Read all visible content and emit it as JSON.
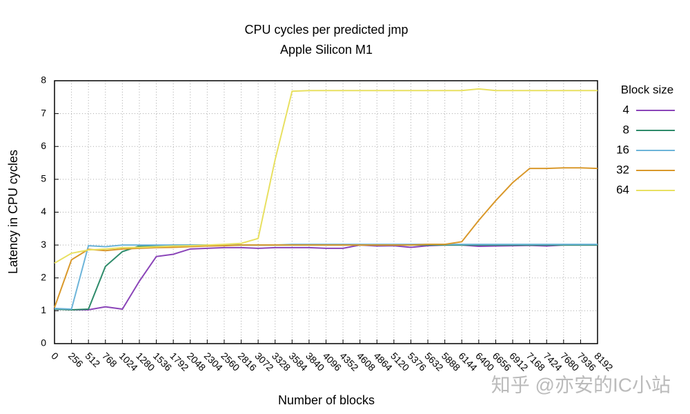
{
  "chart_data": {
    "type": "line",
    "title": "CPU cycles per predicted jmp",
    "subtitle": "Apple Silicon M1",
    "x_label": "Number of blocks",
    "y_label": "Latency in CPU cycles",
    "legend_title": "Block size",
    "legend_position": "right",
    "grid": true,
    "watermark": "知乎 @亦安的IC小站",
    "xlim": [
      0,
      8192
    ],
    "ylim": [
      0,
      8
    ],
    "xticks": [
      0,
      256,
      512,
      768,
      1024,
      1280,
      1536,
      1792,
      2048,
      2304,
      2560,
      2816,
      3072,
      3328,
      3584,
      3840,
      4096,
      4352,
      4608,
      4864,
      5120,
      5376,
      5632,
      5888,
      6144,
      6400,
      6656,
      6912,
      7168,
      7424,
      7680,
      7936,
      8192
    ],
    "yticks": [
      0,
      1,
      2,
      3,
      4,
      5,
      6,
      7,
      8
    ],
    "x": [
      0,
      256,
      512,
      768,
      1024,
      1280,
      1536,
      1792,
      2048,
      2304,
      2560,
      2816,
      3072,
      3328,
      3584,
      3840,
      4096,
      4352,
      4608,
      4864,
      5120,
      5376,
      5632,
      5888,
      6144,
      6400,
      6656,
      6912,
      7168,
      7424,
      7680,
      7936,
      8192
    ],
    "series": [
      {
        "name": "4",
        "color": "#8a44b8",
        "values": [
          1.05,
          1.03,
          1.03,
          1.12,
          1.05,
          1.9,
          2.65,
          2.72,
          2.88,
          2.9,
          2.92,
          2.92,
          2.9,
          2.92,
          2.92,
          2.92,
          2.9,
          2.9,
          3.0,
          2.97,
          2.98,
          2.93,
          2.98,
          3.0,
          3.0,
          2.96,
          2.97,
          2.98,
          2.99,
          2.97,
          3.0,
          3.0,
          3.0
        ]
      },
      {
        "name": "8",
        "color": "#2e8b6a",
        "values": [
          1.05,
          1.03,
          1.05,
          2.35,
          2.8,
          2.97,
          2.98,
          3.0,
          3.0,
          3.0,
          3.0,
          3.0,
          3.0,
          3.0,
          3.0,
          3.0,
          3.0,
          3.0,
          3.0,
          3.0,
          3.0,
          3.0,
          3.0,
          3.0,
          3.0,
          3.0,
          3.0,
          3.0,
          3.0,
          3.0,
          3.0,
          3.0,
          3.0
        ]
      },
      {
        "name": "16",
        "color": "#6cb4d9",
        "values": [
          1.07,
          1.05,
          2.98,
          2.95,
          3.0,
          3.0,
          3.0,
          3.0,
          3.0,
          3.0,
          3.0,
          3.0,
          3.0,
          3.0,
          3.02,
          3.02,
          3.02,
          3.02,
          3.02,
          3.02,
          3.02,
          3.02,
          3.02,
          3.02,
          3.02,
          3.02,
          3.02,
          3.02,
          3.02,
          3.02,
          3.02,
          3.02,
          3.02
        ]
      },
      {
        "name": "32",
        "color": "#d9982a",
        "values": [
          1.1,
          2.55,
          2.87,
          2.83,
          2.88,
          2.9,
          2.92,
          2.93,
          2.95,
          2.97,
          2.98,
          3.0,
          3.0,
          3.0,
          3.0,
          3.0,
          3.0,
          3.0,
          3.0,
          3.0,
          3.0,
          3.0,
          3.02,
          3.02,
          3.1,
          3.75,
          4.35,
          4.9,
          5.33,
          5.33,
          5.35,
          5.35,
          5.33
        ]
      },
      {
        "name": "64",
        "color": "#e8e060",
        "values": [
          2.45,
          2.75,
          2.85,
          2.88,
          2.92,
          2.93,
          2.95,
          2.97,
          2.98,
          3.0,
          3.02,
          3.05,
          3.2,
          5.6,
          7.68,
          7.7,
          7.7,
          7.7,
          7.7,
          7.7,
          7.7,
          7.7,
          7.7,
          7.7,
          7.7,
          7.75,
          7.7,
          7.7,
          7.7,
          7.7,
          7.7,
          7.7,
          7.7
        ]
      }
    ]
  }
}
